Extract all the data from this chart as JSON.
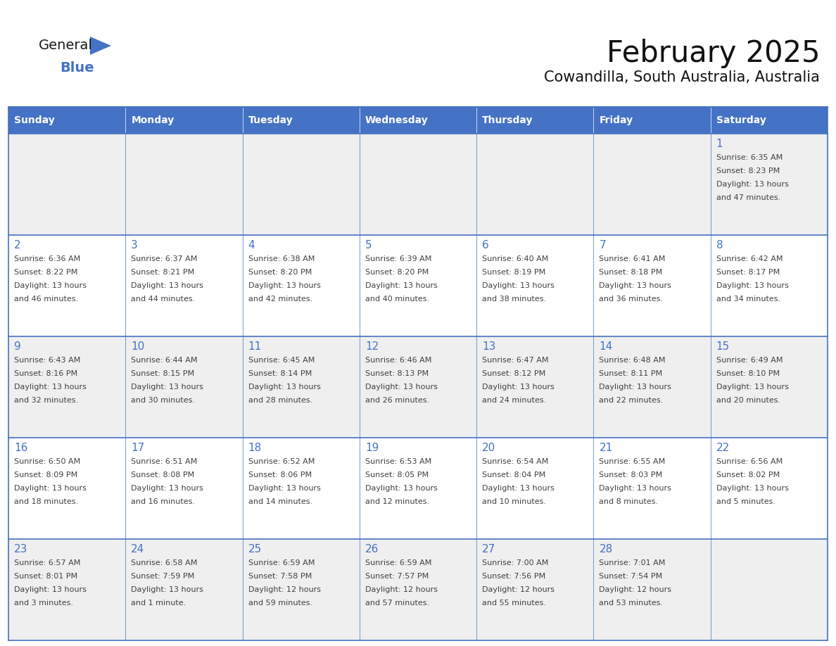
{
  "title": "February 2025",
  "subtitle": "Cowandilla, South Australia, Australia",
  "header_bg": "#4472C4",
  "header_text_color": "#FFFFFF",
  "cell_bg_odd": "#EFEFEF",
  "cell_bg_even": "#FFFFFF",
  "day_number_color": "#4472C4",
  "cell_text_color": "#404040",
  "border_color": "#4472C4",
  "days_of_week": [
    "Sunday",
    "Monday",
    "Tuesday",
    "Wednesday",
    "Thursday",
    "Friday",
    "Saturday"
  ],
  "logo_general_color": "#1a1a1a",
  "logo_blue_color": "#4472C4",
  "logo_triangle_color": "#4472C4",
  "weeks": [
    [
      null,
      null,
      null,
      null,
      null,
      null,
      {
        "day": 1,
        "sunrise": "6:35 AM",
        "sunset": "8:23 PM",
        "daylight_line1": "13 hours",
        "daylight_line2": "and 47 minutes."
      }
    ],
    [
      {
        "day": 2,
        "sunrise": "6:36 AM",
        "sunset": "8:22 PM",
        "daylight_line1": "13 hours",
        "daylight_line2": "and 46 minutes."
      },
      {
        "day": 3,
        "sunrise": "6:37 AM",
        "sunset": "8:21 PM",
        "daylight_line1": "13 hours",
        "daylight_line2": "and 44 minutes."
      },
      {
        "day": 4,
        "sunrise": "6:38 AM",
        "sunset": "8:20 PM",
        "daylight_line1": "13 hours",
        "daylight_line2": "and 42 minutes."
      },
      {
        "day": 5,
        "sunrise": "6:39 AM",
        "sunset": "8:20 PM",
        "daylight_line1": "13 hours",
        "daylight_line2": "and 40 minutes."
      },
      {
        "day": 6,
        "sunrise": "6:40 AM",
        "sunset": "8:19 PM",
        "daylight_line1": "13 hours",
        "daylight_line2": "and 38 minutes."
      },
      {
        "day": 7,
        "sunrise": "6:41 AM",
        "sunset": "8:18 PM",
        "daylight_line1": "13 hours",
        "daylight_line2": "and 36 minutes."
      },
      {
        "day": 8,
        "sunrise": "6:42 AM",
        "sunset": "8:17 PM",
        "daylight_line1": "13 hours",
        "daylight_line2": "and 34 minutes."
      }
    ],
    [
      {
        "day": 9,
        "sunrise": "6:43 AM",
        "sunset": "8:16 PM",
        "daylight_line1": "13 hours",
        "daylight_line2": "and 32 minutes."
      },
      {
        "day": 10,
        "sunrise": "6:44 AM",
        "sunset": "8:15 PM",
        "daylight_line1": "13 hours",
        "daylight_line2": "and 30 minutes."
      },
      {
        "day": 11,
        "sunrise": "6:45 AM",
        "sunset": "8:14 PM",
        "daylight_line1": "13 hours",
        "daylight_line2": "and 28 minutes."
      },
      {
        "day": 12,
        "sunrise": "6:46 AM",
        "sunset": "8:13 PM",
        "daylight_line1": "13 hours",
        "daylight_line2": "and 26 minutes."
      },
      {
        "day": 13,
        "sunrise": "6:47 AM",
        "sunset": "8:12 PM",
        "daylight_line1": "13 hours",
        "daylight_line2": "and 24 minutes."
      },
      {
        "day": 14,
        "sunrise": "6:48 AM",
        "sunset": "8:11 PM",
        "daylight_line1": "13 hours",
        "daylight_line2": "and 22 minutes."
      },
      {
        "day": 15,
        "sunrise": "6:49 AM",
        "sunset": "8:10 PM",
        "daylight_line1": "13 hours",
        "daylight_line2": "and 20 minutes."
      }
    ],
    [
      {
        "day": 16,
        "sunrise": "6:50 AM",
        "sunset": "8:09 PM",
        "daylight_line1": "13 hours",
        "daylight_line2": "and 18 minutes."
      },
      {
        "day": 17,
        "sunrise": "6:51 AM",
        "sunset": "8:08 PM",
        "daylight_line1": "13 hours",
        "daylight_line2": "and 16 minutes."
      },
      {
        "day": 18,
        "sunrise": "6:52 AM",
        "sunset": "8:06 PM",
        "daylight_line1": "13 hours",
        "daylight_line2": "and 14 minutes."
      },
      {
        "day": 19,
        "sunrise": "6:53 AM",
        "sunset": "8:05 PM",
        "daylight_line1": "13 hours",
        "daylight_line2": "and 12 minutes."
      },
      {
        "day": 20,
        "sunrise": "6:54 AM",
        "sunset": "8:04 PM",
        "daylight_line1": "13 hours",
        "daylight_line2": "and 10 minutes."
      },
      {
        "day": 21,
        "sunrise": "6:55 AM",
        "sunset": "8:03 PM",
        "daylight_line1": "13 hours",
        "daylight_line2": "and 8 minutes."
      },
      {
        "day": 22,
        "sunrise": "6:56 AM",
        "sunset": "8:02 PM",
        "daylight_line1": "13 hours",
        "daylight_line2": "and 5 minutes."
      }
    ],
    [
      {
        "day": 23,
        "sunrise": "6:57 AM",
        "sunset": "8:01 PM",
        "daylight_line1": "13 hours",
        "daylight_line2": "and 3 minutes."
      },
      {
        "day": 24,
        "sunrise": "6:58 AM",
        "sunset": "7:59 PM",
        "daylight_line1": "13 hours",
        "daylight_line2": "and 1 minute."
      },
      {
        "day": 25,
        "sunrise": "6:59 AM",
        "sunset": "7:58 PM",
        "daylight_line1": "12 hours",
        "daylight_line2": "and 59 minutes."
      },
      {
        "day": 26,
        "sunrise": "6:59 AM",
        "sunset": "7:57 PM",
        "daylight_line1": "12 hours",
        "daylight_line2": "and 57 minutes."
      },
      {
        "day": 27,
        "sunrise": "7:00 AM",
        "sunset": "7:56 PM",
        "daylight_line1": "12 hours",
        "daylight_line2": "and 55 minutes."
      },
      {
        "day": 28,
        "sunrise": "7:01 AM",
        "sunset": "7:54 PM",
        "daylight_line1": "12 hours",
        "daylight_line2": "and 53 minutes."
      },
      null
    ]
  ]
}
